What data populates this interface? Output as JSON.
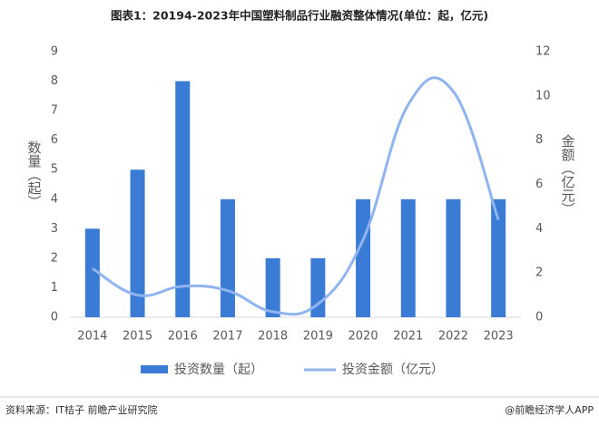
{
  "chart_data": {
    "type": "bar_line",
    "title": "图表1：20194-2023年中国塑料制品行业融资整体情况(单位：起，亿元)",
    "y_label": "数量（起）",
    "y2_label": "金额（亿元）",
    "categories": [
      "2014",
      "2015",
      "2016",
      "2017",
      "2018",
      "2019",
      "2020",
      "2021",
      "2022",
      "2023"
    ],
    "series": [
      {
        "name": "投资数量（起）",
        "type": "bar",
        "color": "#3a7bd5",
        "values": [
          3,
          5,
          8,
          4,
          2,
          2,
          4,
          4,
          4,
          4
        ]
      },
      {
        "name": "投资金额（亿元）",
        "type": "line",
        "axis": "y2",
        "color": "#8fb4f0",
        "values": [
          2.2,
          1.0,
          1.4,
          1.2,
          0.25,
          0.6,
          3.5,
          9.6,
          10.2,
          4.4
        ]
      }
    ],
    "ylim": [
      0,
      9
    ],
    "yticks": [
      0,
      1,
      2,
      3,
      4,
      5,
      6,
      7,
      8,
      9
    ],
    "y2lim": [
      0,
      12
    ],
    "y2ticks": [
      0,
      2,
      4,
      6,
      8,
      10,
      12
    ],
    "source": "资料来源：IT桔子 前瞻产业研究院",
    "credit": "@前瞻经济学人APP"
  }
}
